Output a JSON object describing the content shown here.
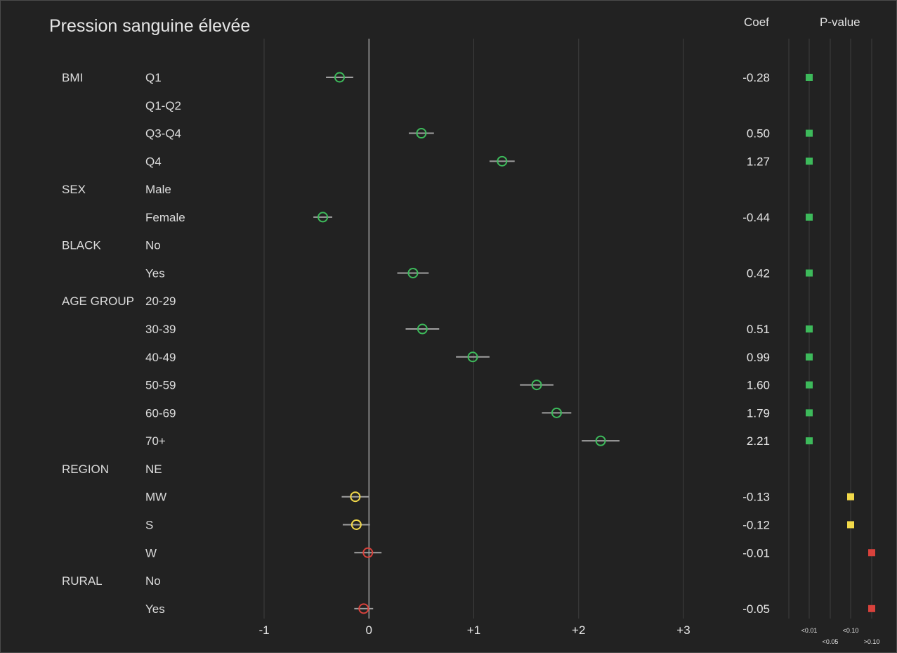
{
  "title": "Pression sanguine élevée",
  "headers": {
    "coef": "Coef",
    "pvalue": "P-value"
  },
  "colors": {
    "background": "#222222",
    "gridline": "#3e3e3e",
    "zero_line": "#bdbdbd",
    "ci_line": "#a0a0a0",
    "text": "#dcdcdc",
    "p_lt_001": "#3dba5b",
    "p_lt_010": "#f2d94a",
    "p_gt_010": "#d9423c"
  },
  "chart_data": {
    "type": "forest",
    "xlim": [
      -1,
      3
    ],
    "x_ticks": [
      -1,
      0,
      1,
      2,
      3
    ],
    "x_tick_labels": [
      "-1",
      "0",
      "+1",
      "+2",
      "+3"
    ],
    "pvalue_bins": [
      "<0.01",
      "<0.05",
      "<0.10",
      ">0.10"
    ],
    "pvalue_label_rows": [
      [
        "<0.01",
        "",
        "<0.10",
        ""
      ],
      [
        "",
        "<0.05",
        "",
        ">0.10"
      ]
    ],
    "rows": [
      {
        "group": "BMI",
        "level": "Q1",
        "coef": -0.28,
        "coef_label": "-0.28",
        "ci": [
          -0.41,
          -0.15
        ],
        "pbin": 0
      },
      {
        "group": "",
        "level": "Q1-Q2",
        "coef": null,
        "coef_label": "",
        "ci": null,
        "pbin": null
      },
      {
        "group": "",
        "level": "Q3-Q4",
        "coef": 0.5,
        "coef_label": "0.50",
        "ci": [
          0.38,
          0.62
        ],
        "pbin": 0
      },
      {
        "group": "",
        "level": "Q4",
        "coef": 1.27,
        "coef_label": "1.27",
        "ci": [
          1.15,
          1.39
        ],
        "pbin": 0
      },
      {
        "group": "SEX",
        "level": "Male",
        "coef": null,
        "coef_label": "",
        "ci": null,
        "pbin": null
      },
      {
        "group": "",
        "level": "Female",
        "coef": -0.44,
        "coef_label": "-0.44",
        "ci": [
          -0.53,
          -0.35
        ],
        "pbin": 0
      },
      {
        "group": "BLACK",
        "level": "No",
        "coef": null,
        "coef_label": "",
        "ci": null,
        "pbin": null
      },
      {
        "group": "",
        "level": "Yes",
        "coef": 0.42,
        "coef_label": "0.42",
        "ci": [
          0.27,
          0.57
        ],
        "pbin": 0
      },
      {
        "group": "AGE GROUP",
        "level": "20-29",
        "coef": null,
        "coef_label": "",
        "ci": null,
        "pbin": null
      },
      {
        "group": "",
        "level": "30-39",
        "coef": 0.51,
        "coef_label": "0.51",
        "ci": [
          0.35,
          0.67
        ],
        "pbin": 0
      },
      {
        "group": "",
        "level": "40-49",
        "coef": 0.99,
        "coef_label": "0.99",
        "ci": [
          0.83,
          1.15
        ],
        "pbin": 0
      },
      {
        "group": "",
        "level": "50-59",
        "coef": 1.6,
        "coef_label": "1.60",
        "ci": [
          1.44,
          1.76
        ],
        "pbin": 0
      },
      {
        "group": "",
        "level": "60-69",
        "coef": 1.79,
        "coef_label": "1.79",
        "ci": [
          1.65,
          1.93
        ],
        "pbin": 0
      },
      {
        "group": "",
        "level": "70+",
        "coef": 2.21,
        "coef_label": "2.21",
        "ci": [
          2.03,
          2.39
        ],
        "pbin": 0
      },
      {
        "group": "REGION",
        "level": "NE",
        "coef": null,
        "coef_label": "",
        "ci": null,
        "pbin": null
      },
      {
        "group": "",
        "level": "MW",
        "coef": -0.13,
        "coef_label": "-0.13",
        "ci": [
          -0.26,
          0.0
        ],
        "pbin": 2
      },
      {
        "group": "",
        "level": "S",
        "coef": -0.12,
        "coef_label": "-0.12",
        "ci": [
          -0.25,
          0.01
        ],
        "pbin": 2
      },
      {
        "group": "",
        "level": "W",
        "coef": -0.01,
        "coef_label": "-0.01",
        "ci": [
          -0.14,
          0.12
        ],
        "pbin": 3
      },
      {
        "group": "RURAL",
        "level": "No",
        "coef": null,
        "coef_label": "",
        "ci": null,
        "pbin": null
      },
      {
        "group": "",
        "level": "Yes",
        "coef": -0.05,
        "coef_label": "-0.05",
        "ci": [
          -0.14,
          0.04
        ],
        "pbin": 3
      }
    ]
  }
}
